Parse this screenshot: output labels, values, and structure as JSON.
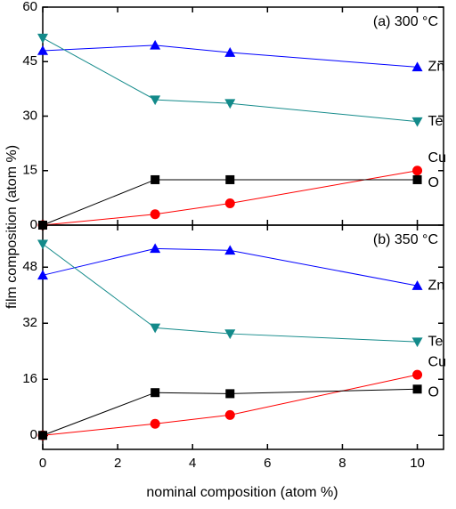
{
  "chart_data": [
    {
      "type": "line",
      "title": "(a) 300 °C",
      "ylabel": "film composition (atom %)",
      "x": [
        0,
        3,
        5,
        10
      ],
      "xlim": [
        0,
        10.7
      ],
      "xticks": [
        0,
        2,
        4,
        6,
        8,
        10
      ],
      "ylim": [
        0,
        60
      ],
      "yticks": [
        0,
        15,
        30,
        45,
        60
      ],
      "series": [
        {
          "name": "Zn",
          "color": "#0000ff",
          "marker": "triangle-up",
          "values": [
            48,
            49.5,
            47.5,
            43.5
          ]
        },
        {
          "name": "Te",
          "color": "#138a8a",
          "marker": "triangle-down",
          "values": [
            51.5,
            34.5,
            33.5,
            28.5
          ]
        },
        {
          "name": "Cu",
          "color": "#ff0000",
          "marker": "circle",
          "values": [
            0,
            3,
            6,
            15
          ]
        },
        {
          "name": "O",
          "color": "#000000",
          "marker": "square",
          "values": [
            0,
            12.5,
            12.5,
            12.5
          ]
        }
      ]
    },
    {
      "type": "line",
      "title": "(b) 350 °C",
      "xlabel": "nominal composition (atom %)",
      "x": [
        0,
        3,
        5,
        10
      ],
      "xlim": [
        0,
        10.7
      ],
      "xticks": [
        0,
        2,
        4,
        6,
        8,
        10
      ],
      "ylim": [
        -4,
        60
      ],
      "yticks": [
        0,
        16,
        32,
        48
      ],
      "series": [
        {
          "name": "Zn",
          "color": "#0000ff",
          "marker": "triangle-up",
          "values": [
            45.7,
            53.3,
            52.8,
            42.7
          ]
        },
        {
          "name": "Te",
          "color": "#138a8a",
          "marker": "triangle-down",
          "values": [
            54.6,
            30.7,
            29,
            26.7
          ]
        },
        {
          "name": "Cu",
          "color": "#ff0000",
          "marker": "circle",
          "values": [
            0,
            3.3,
            5.8,
            17.3
          ]
        },
        {
          "name": "O",
          "color": "#000000",
          "marker": "square",
          "values": [
            0,
            12.2,
            11.9,
            13.2
          ]
        }
      ]
    }
  ]
}
